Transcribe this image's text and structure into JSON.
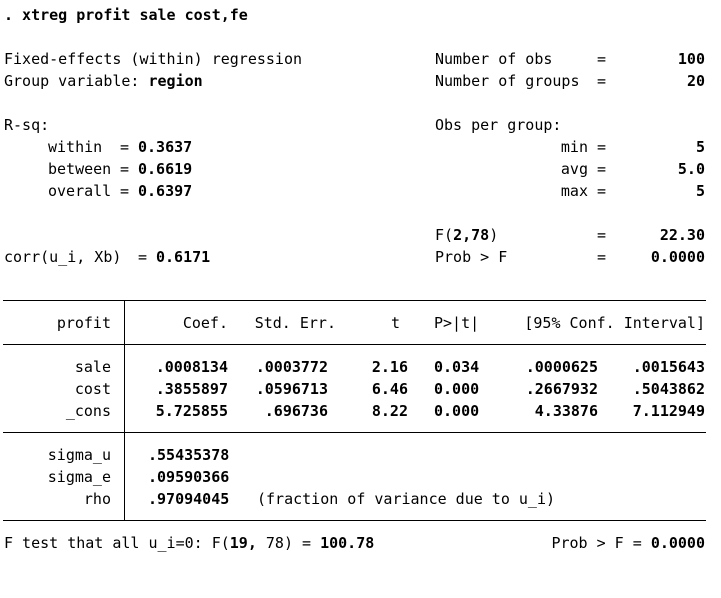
{
  "command": ". xtreg profit sale cost,fe",
  "header": {
    "model_title": "Fixed-effects (within) regression",
    "group_var_label": "Group variable:",
    "group_var_value": "region",
    "nobs_label": "Number of obs",
    "nobs_value": "100",
    "ngroups_label": "Number of groups",
    "ngroups_value": "20",
    "eq": "="
  },
  "rsq": {
    "label": "R-sq:",
    "within_label": "within",
    "within_value": "0.3637",
    "between_label": "between",
    "between_value": "0.6619",
    "overall_label": "overall",
    "overall_value": "0.6397",
    "eq": "="
  },
  "obs_per_group": {
    "label": "Obs per group:",
    "min_label": "min",
    "min_value": "5",
    "avg_label": "avg",
    "avg_value": "5.0",
    "max_label": "max",
    "max_value": "5"
  },
  "ftest": {
    "f_label_prefix": "F(",
    "f_df": "2,78",
    "f_label_suffix": ")",
    "f_value": "22.30",
    "prob_label": "Prob > F",
    "prob_value": "0.0000",
    "corr_label": "corr(u_i, Xb)",
    "corr_value": "0.6171"
  },
  "table": {
    "depvar": "profit",
    "headers": [
      "Coef.",
      "Std. Err.",
      "t",
      "P>|t|",
      "[95% Conf. Interval]"
    ],
    "rows": [
      {
        "var": "sale",
        "coef": ".0008134",
        "se": ".0003772",
        "t": "2.16",
        "p": "0.034",
        "lo": ".0000625",
        "hi": ".0015643"
      },
      {
        "var": "cost",
        "coef": ".3855897",
        "se": ".0596713",
        "t": "6.46",
        "p": "0.000",
        "lo": ".2667932",
        "hi": ".5043862"
      },
      {
        "var": "_cons",
        "coef": "5.725855",
        "se": ".696736",
        "t": "8.22",
        "p": "0.000",
        "lo": "4.33876",
        "hi": "7.112949"
      }
    ],
    "sigma_rows": [
      {
        "var": "sigma_u",
        "value": ".55435378"
      },
      {
        "var": "sigma_e",
        "value": ".09590366"
      },
      {
        "var": "rho",
        "value": ".97094045",
        "note": "(fraction of variance due to u_i)"
      }
    ]
  },
  "footer": {
    "text": "F test that all u_i=0: F(",
    "df_bold": "19,",
    "df_rest": " 78)",
    "eq": " = ",
    "f_value": "100.78",
    "prob_label": "Prob > F = ",
    "prob_value": "0.0000"
  }
}
